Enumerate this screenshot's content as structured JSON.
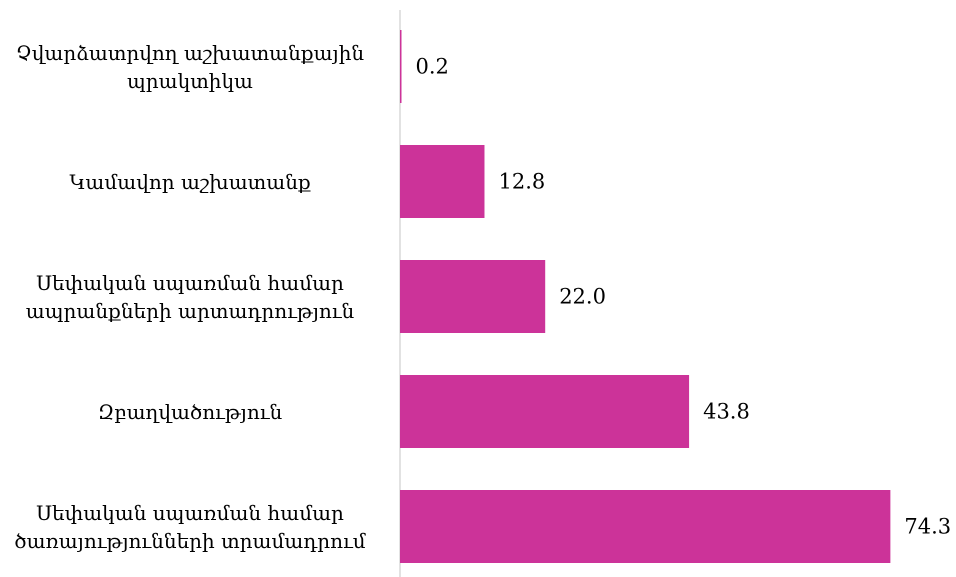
{
  "chart_data": {
    "type": "bar",
    "orientation": "horizontal",
    "categories": [
      "Չվարձատրվող աշխատանքային պրակտիկա",
      "Կամավոր աշխատանք",
      "Սեփական սպառման համար ապրանքների արտադրություն",
      "Զբաղվածություն",
      "Սեփական սպառման համար ծառայությունների տրամադրում"
    ],
    "values": [
      0.2,
      12.8,
      22.0,
      43.8,
      74.3
    ],
    "value_labels": [
      "0.2",
      "12.8",
      "22.0",
      "43.8",
      "74.3"
    ],
    "xlim": [
      0,
      75
    ],
    "bar_color": "#cc3399",
    "axis_color": "#d9d9d9",
    "grid": false,
    "legend": "none"
  }
}
